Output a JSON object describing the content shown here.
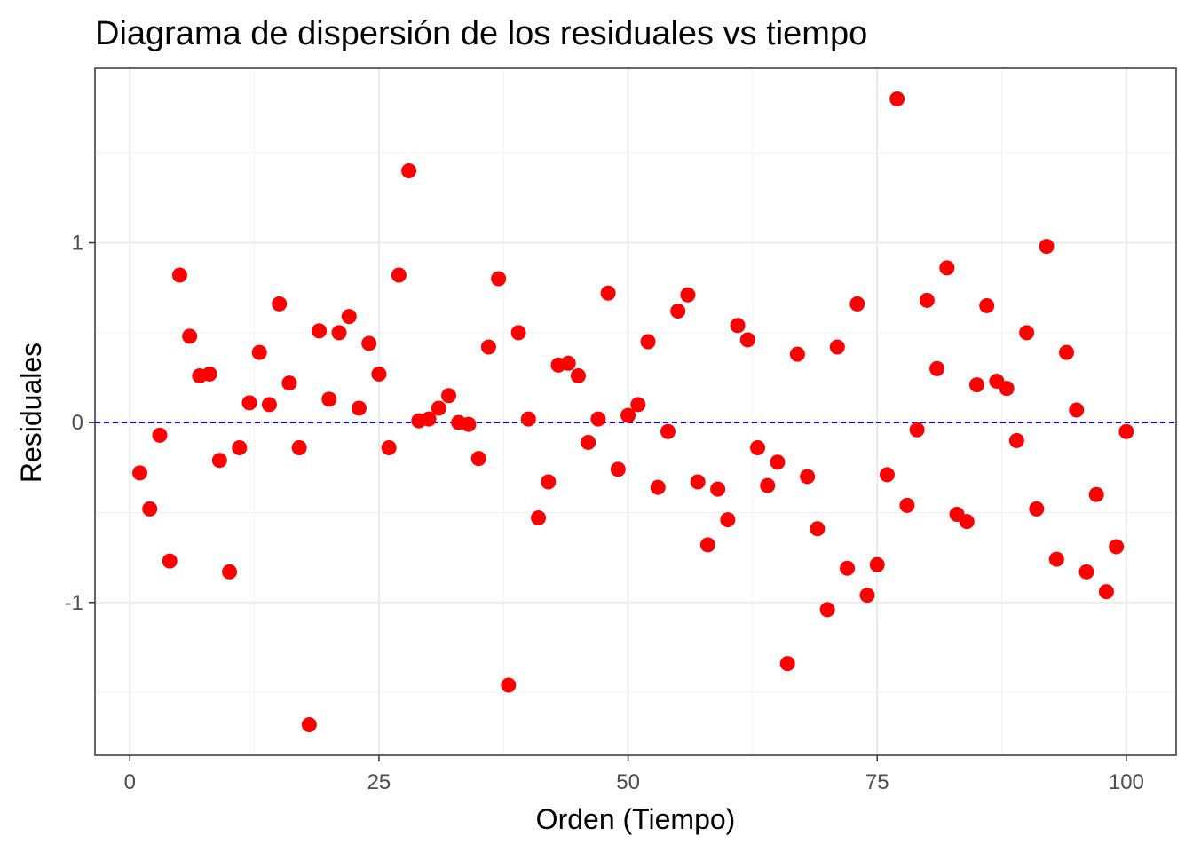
{
  "chart_data": {
    "type": "scatter",
    "title": "Diagrama de dispersión de los residuales vs tiempo",
    "xlabel": "Orden (Tiempo)",
    "ylabel": "Residuales",
    "xlim": [
      -3.5,
      105
    ],
    "ylim": [
      -1.85,
      1.97
    ],
    "x_ticks": [
      0,
      25,
      50,
      75,
      100
    ],
    "x_tick_labels": [
      "0",
      "25",
      "50",
      "75",
      "100"
    ],
    "y_ticks": [
      -1,
      0,
      1
    ],
    "y_tick_labels": [
      "-1",
      "0",
      "1"
    ],
    "grid": true,
    "reference_line": {
      "y": 0,
      "style": "dashed",
      "color": "#0000ff"
    },
    "point_color": "#ff0000",
    "x": [
      1,
      2,
      3,
      4,
      5,
      6,
      7,
      8,
      9,
      10,
      11,
      12,
      13,
      14,
      15,
      16,
      17,
      18,
      19,
      20,
      21,
      22,
      23,
      24,
      25,
      26,
      27,
      28,
      29,
      30,
      31,
      32,
      33,
      34,
      35,
      36,
      37,
      38,
      39,
      40,
      41,
      42,
      43,
      44,
      45,
      46,
      47,
      48,
      49,
      50,
      51,
      52,
      53,
      54,
      55,
      56,
      57,
      58,
      59,
      60,
      61,
      62,
      63,
      64,
      65,
      66,
      67,
      68,
      69,
      70,
      71,
      72,
      73,
      74,
      75,
      76,
      77,
      78,
      79,
      80,
      81,
      82,
      83,
      84,
      85,
      86,
      87,
      88,
      89,
      90,
      91,
      92,
      93,
      94,
      95,
      96,
      97,
      98,
      99,
      100
    ],
    "y": [
      -0.28,
      -0.48,
      -0.07,
      -0.77,
      0.82,
      0.48,
      0.26,
      0.27,
      -0.21,
      -0.83,
      -0.14,
      0.11,
      0.39,
      0.1,
      0.66,
      0.22,
      -0.14,
      -1.68,
      0.51,
      0.13,
      0.5,
      0.59,
      0.08,
      0.44,
      0.27,
      -0.14,
      0.82,
      1.4,
      0.01,
      0.02,
      0.08,
      0.15,
      0.0,
      -0.01,
      -0.2,
      0.42,
      0.8,
      -1.46,
      0.5,
      0.02,
      -0.53,
      -0.33,
      0.32,
      0.33,
      0.26,
      -0.11,
      0.02,
      0.72,
      -0.26,
      0.04,
      0.1,
      0.45,
      -0.36,
      -0.05,
      0.62,
      0.71,
      -0.33,
      -0.68,
      -0.37,
      -0.54,
      0.54,
      0.46,
      -0.14,
      -0.35,
      -0.22,
      -1.34,
      0.38,
      -0.3,
      -0.59,
      -1.04,
      0.42,
      -0.81,
      0.66,
      -0.96,
      -0.79,
      -0.29,
      1.8,
      -0.46,
      -0.04,
      0.68,
      0.3,
      0.86,
      -0.51,
      -0.55,
      0.21,
      0.65,
      0.23,
      0.19,
      -0.1,
      0.5,
      -0.48,
      0.98,
      -0.76,
      0.39,
      0.07,
      -0.83,
      -0.4,
      -0.94,
      -0.69,
      -0.05
    ]
  }
}
